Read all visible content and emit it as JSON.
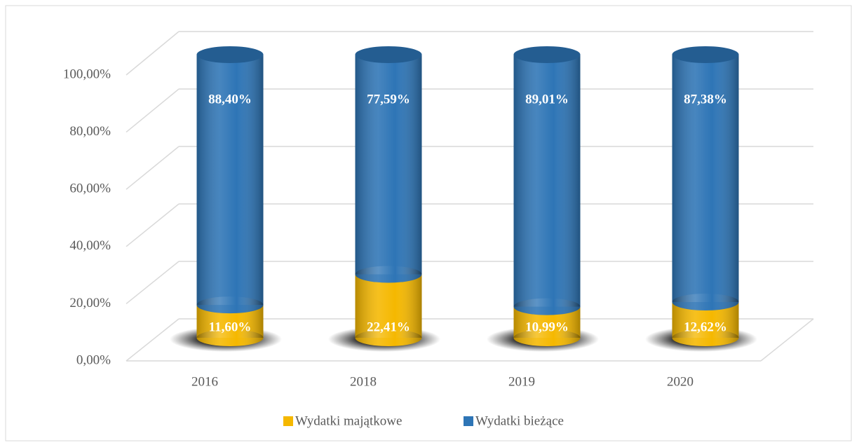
{
  "chart_data": {
    "type": "bar3d-cylinder-stacked",
    "categories": [
      "2016",
      "2018",
      "2019",
      "2020"
    ],
    "series": [
      {
        "name": "Wydatki majątkowe",
        "color": "#f5b800",
        "values": [
          11.6,
          22.41,
          10.99,
          12.62
        ],
        "value_labels": [
          "11,60%",
          "22,41%",
          "10,99%",
          "12,62%"
        ]
      },
      {
        "name": "Wydatki bieżące",
        "color": "#2e75b6",
        "values": [
          88.4,
          77.59,
          89.01,
          87.38
        ],
        "value_labels": [
          "88,40%",
          "77,59%",
          "89,01%",
          "87,38%"
        ]
      }
    ],
    "ylim": [
      0,
      100
    ],
    "yticks": [
      {
        "value": 0,
        "label": "0,00%"
      },
      {
        "value": 20,
        "label": "20,00%"
      },
      {
        "value": 40,
        "label": "40,00%"
      },
      {
        "value": 60,
        "label": "60,00%"
      },
      {
        "value": 80,
        "label": "80,00%"
      },
      {
        "value": 100,
        "label": "100,00%"
      }
    ],
    "grid": true,
    "legend": "bottom"
  }
}
